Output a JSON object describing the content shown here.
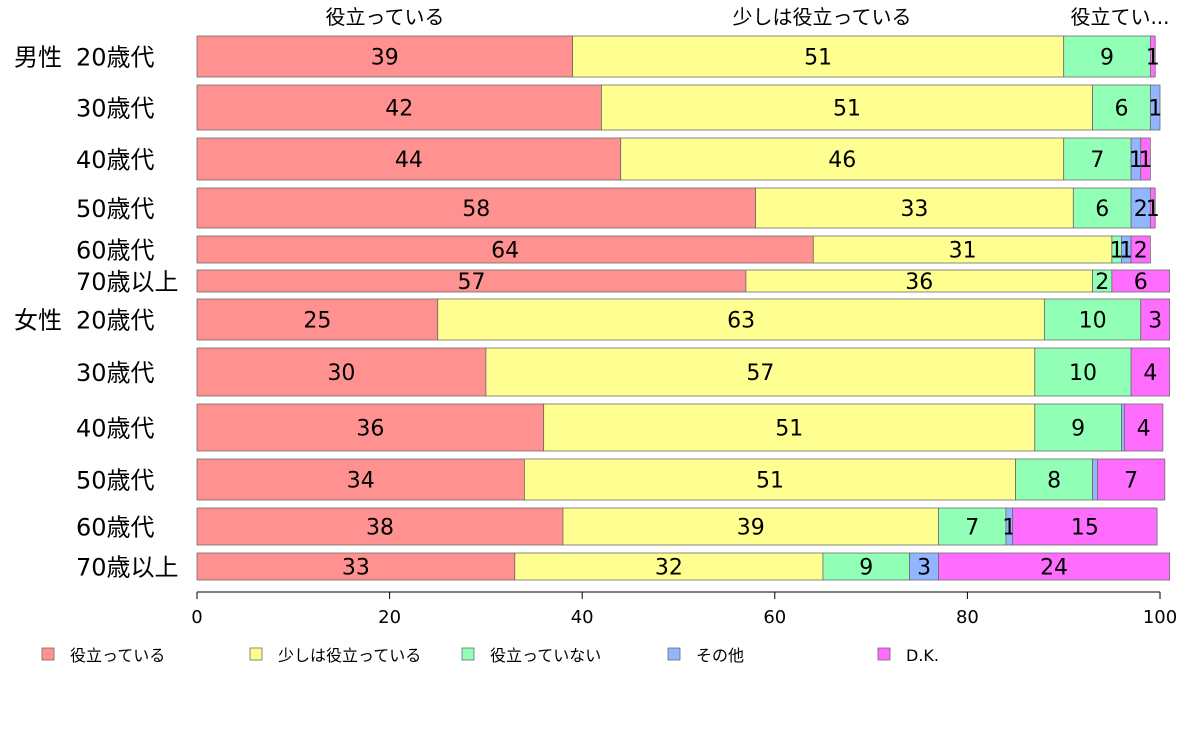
{
  "chart_data": {
    "type": "bar",
    "orientation": "horizontal",
    "stacked": true,
    "top_labels": [
      "役立っている",
      "少しは役立っている",
      "役立てい..."
    ],
    "groups": [
      {
        "name": "男性",
        "rows": [
          "20歳代",
          "30歳代",
          "40歳代",
          "50歳代",
          "60歳代",
          "70歳以上"
        ]
      },
      {
        "name": "女性",
        "rows": [
          "20歳代",
          "30歳代",
          "40歳代",
          "50歳代",
          "60歳代",
          "70歳以上"
        ]
      }
    ],
    "categories": [
      "男性 20歳代",
      "男性 30歳代",
      "男性 40歳代",
      "男性 50歳代",
      "男性 60歳代",
      "男性 70歳以上",
      "女性 20歳代",
      "女性 30歳代",
      "女性 40歳代",
      "女性 50歳代",
      "女性 60歳代",
      "女性 70歳以上"
    ],
    "series": [
      {
        "name": "役立っている",
        "color": "#ff9191",
        "values": [
          39,
          42,
          44,
          58,
          64,
          57,
          25,
          30,
          36,
          34,
          38,
          33
        ]
      },
      {
        "name": "少しは役立っている",
        "color": "#ffff91",
        "values": [
          51,
          51,
          46,
          33,
          31,
          36,
          63,
          57,
          51,
          51,
          39,
          32
        ]
      },
      {
        "name": "役立っていない",
        "color": "#91ffb6",
        "values": [
          9,
          6,
          7,
          6,
          1,
          2,
          10,
          10,
          9,
          8,
          7,
          9
        ]
      },
      {
        "name": "その他",
        "color": "#91b6ff",
        "values": [
          0,
          1,
          1,
          2,
          1,
          0,
          0,
          0,
          0.3,
          0.5,
          0.7,
          3
        ]
      },
      {
        "name": "D.K.",
        "color": "#ff6dff",
        "values": [
          0.5,
          0,
          1,
          0.5,
          2,
          6,
          3,
          4,
          4,
          7,
          15,
          24
        ]
      }
    ],
    "labels": [
      [
        "39",
        "51",
        "9",
        "",
        "1"
      ],
      [
        "42",
        "51",
        "6",
        "1",
        ""
      ],
      [
        "44",
        "46",
        "7",
        "1",
        "1"
      ],
      [
        "58",
        "33",
        "6",
        "2",
        "1"
      ],
      [
        "64",
        "31",
        "1",
        "1",
        "2"
      ],
      [
        "57",
        "36",
        "2",
        "",
        "6"
      ],
      [
        "25",
        "63",
        "10",
        "",
        "3"
      ],
      [
        "30",
        "57",
        "10",
        "",
        "4"
      ],
      [
        "36",
        "51",
        "9",
        "",
        "4"
      ],
      [
        "34",
        "51",
        "8",
        "",
        "7"
      ],
      [
        "38",
        "39",
        "7",
        "1",
        "15"
      ],
      [
        "33",
        "32",
        "9",
        "3",
        "24"
      ]
    ],
    "x_ticks": [
      "0",
      "20",
      "40",
      "60",
      "80",
      "100"
    ],
    "xlim": [
      0,
      100
    ],
    "grid": false,
    "legend_position": "bottom"
  }
}
